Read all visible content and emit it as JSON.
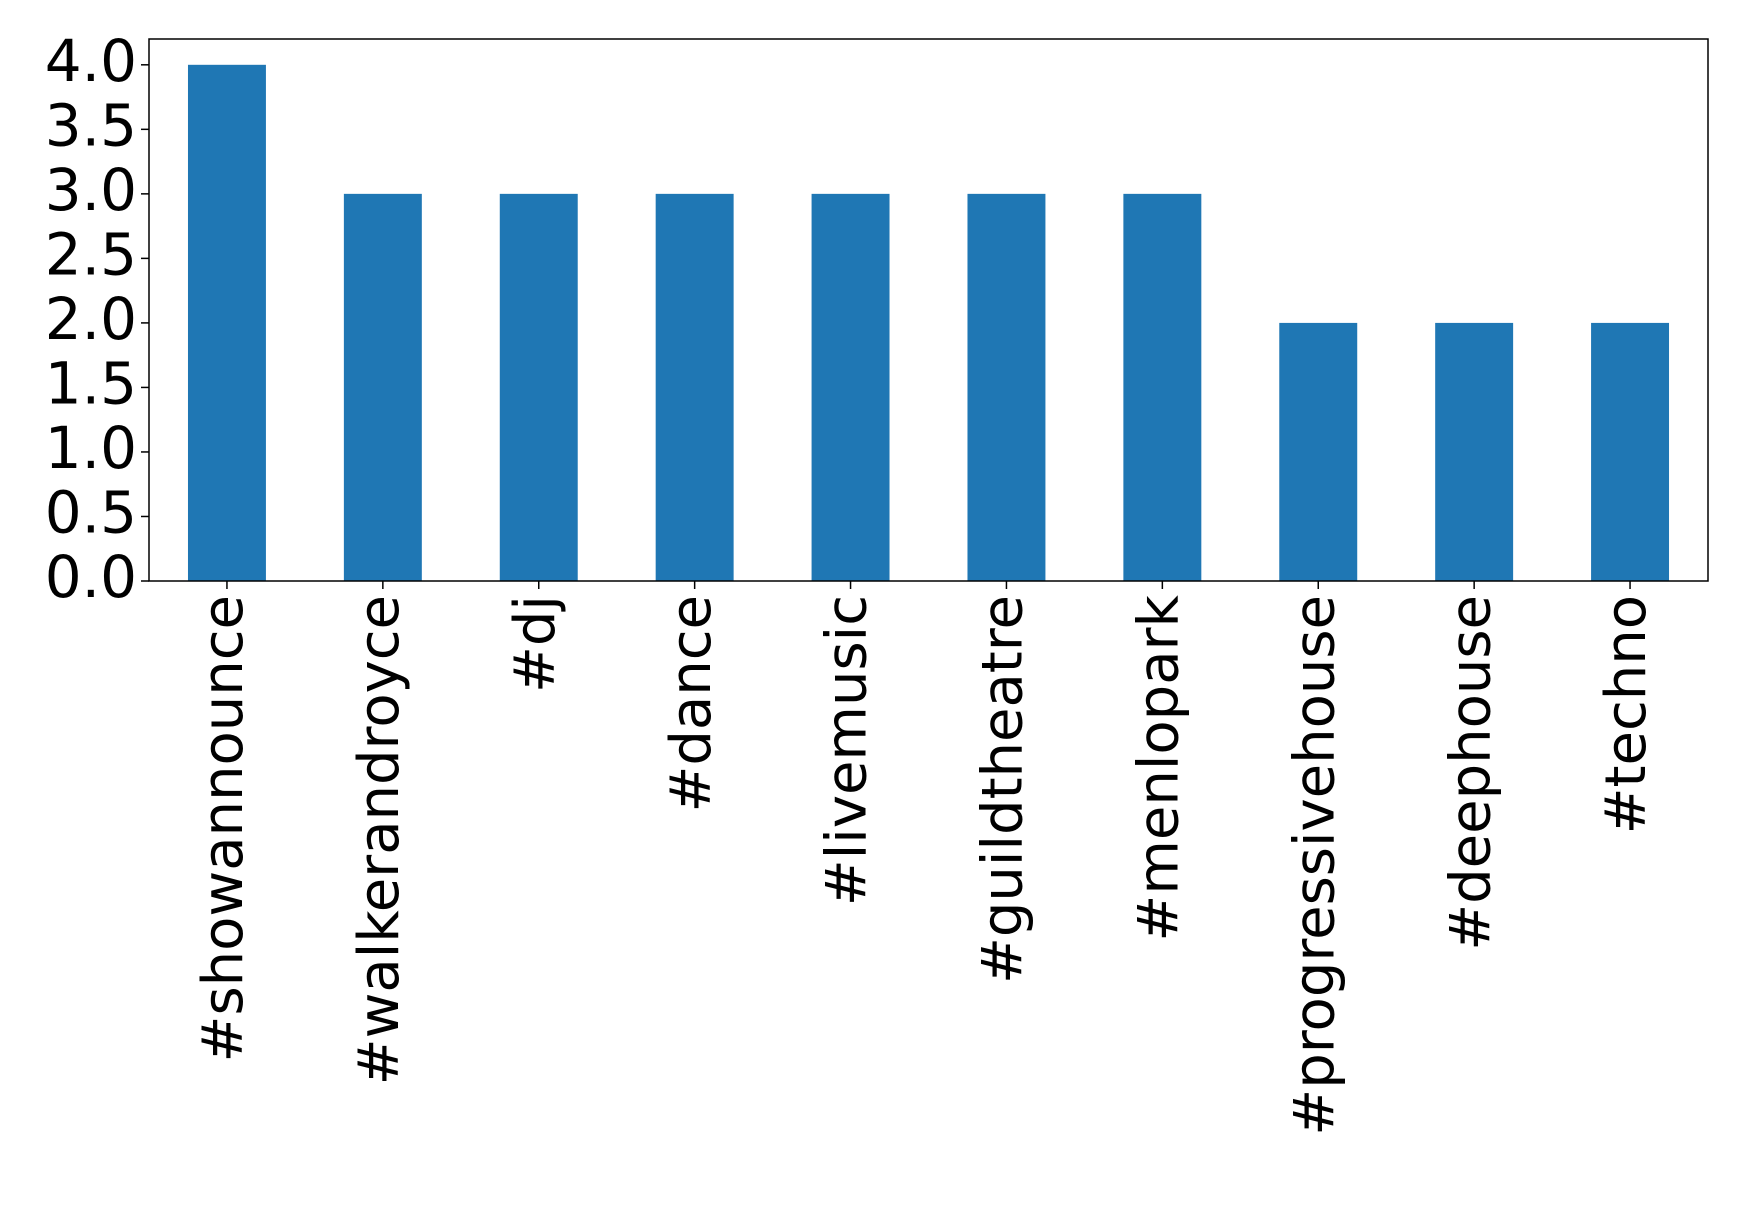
{
  "chart_data": {
    "type": "bar",
    "categories": [
      "#showannounce",
      "#walkerandroyce",
      "#dj",
      "#dance",
      "#livemusic",
      "#guildtheatre",
      "#menlopark",
      "#progressivehouse",
      "#deephouse",
      "#techno"
    ],
    "values": [
      4,
      3,
      3,
      3,
      3,
      3,
      3,
      2,
      2,
      2
    ],
    "color": "#1f77b4",
    "ylim": [
      0,
      4.2
    ],
    "yticks": [
      {
        "value": 0,
        "label": "0.0"
      },
      {
        "value": 0.5,
        "label": "0.5"
      },
      {
        "value": 1,
        "label": "1.0"
      },
      {
        "value": 1.5,
        "label": "1.5"
      },
      {
        "value": 2,
        "label": "2.0"
      },
      {
        "value": 2.5,
        "label": "2.5"
      },
      {
        "value": 3,
        "label": "3.0"
      },
      {
        "value": 3.5,
        "label": "3.5"
      },
      {
        "value": 4,
        "label": "4.0"
      }
    ],
    "grid": false
  }
}
